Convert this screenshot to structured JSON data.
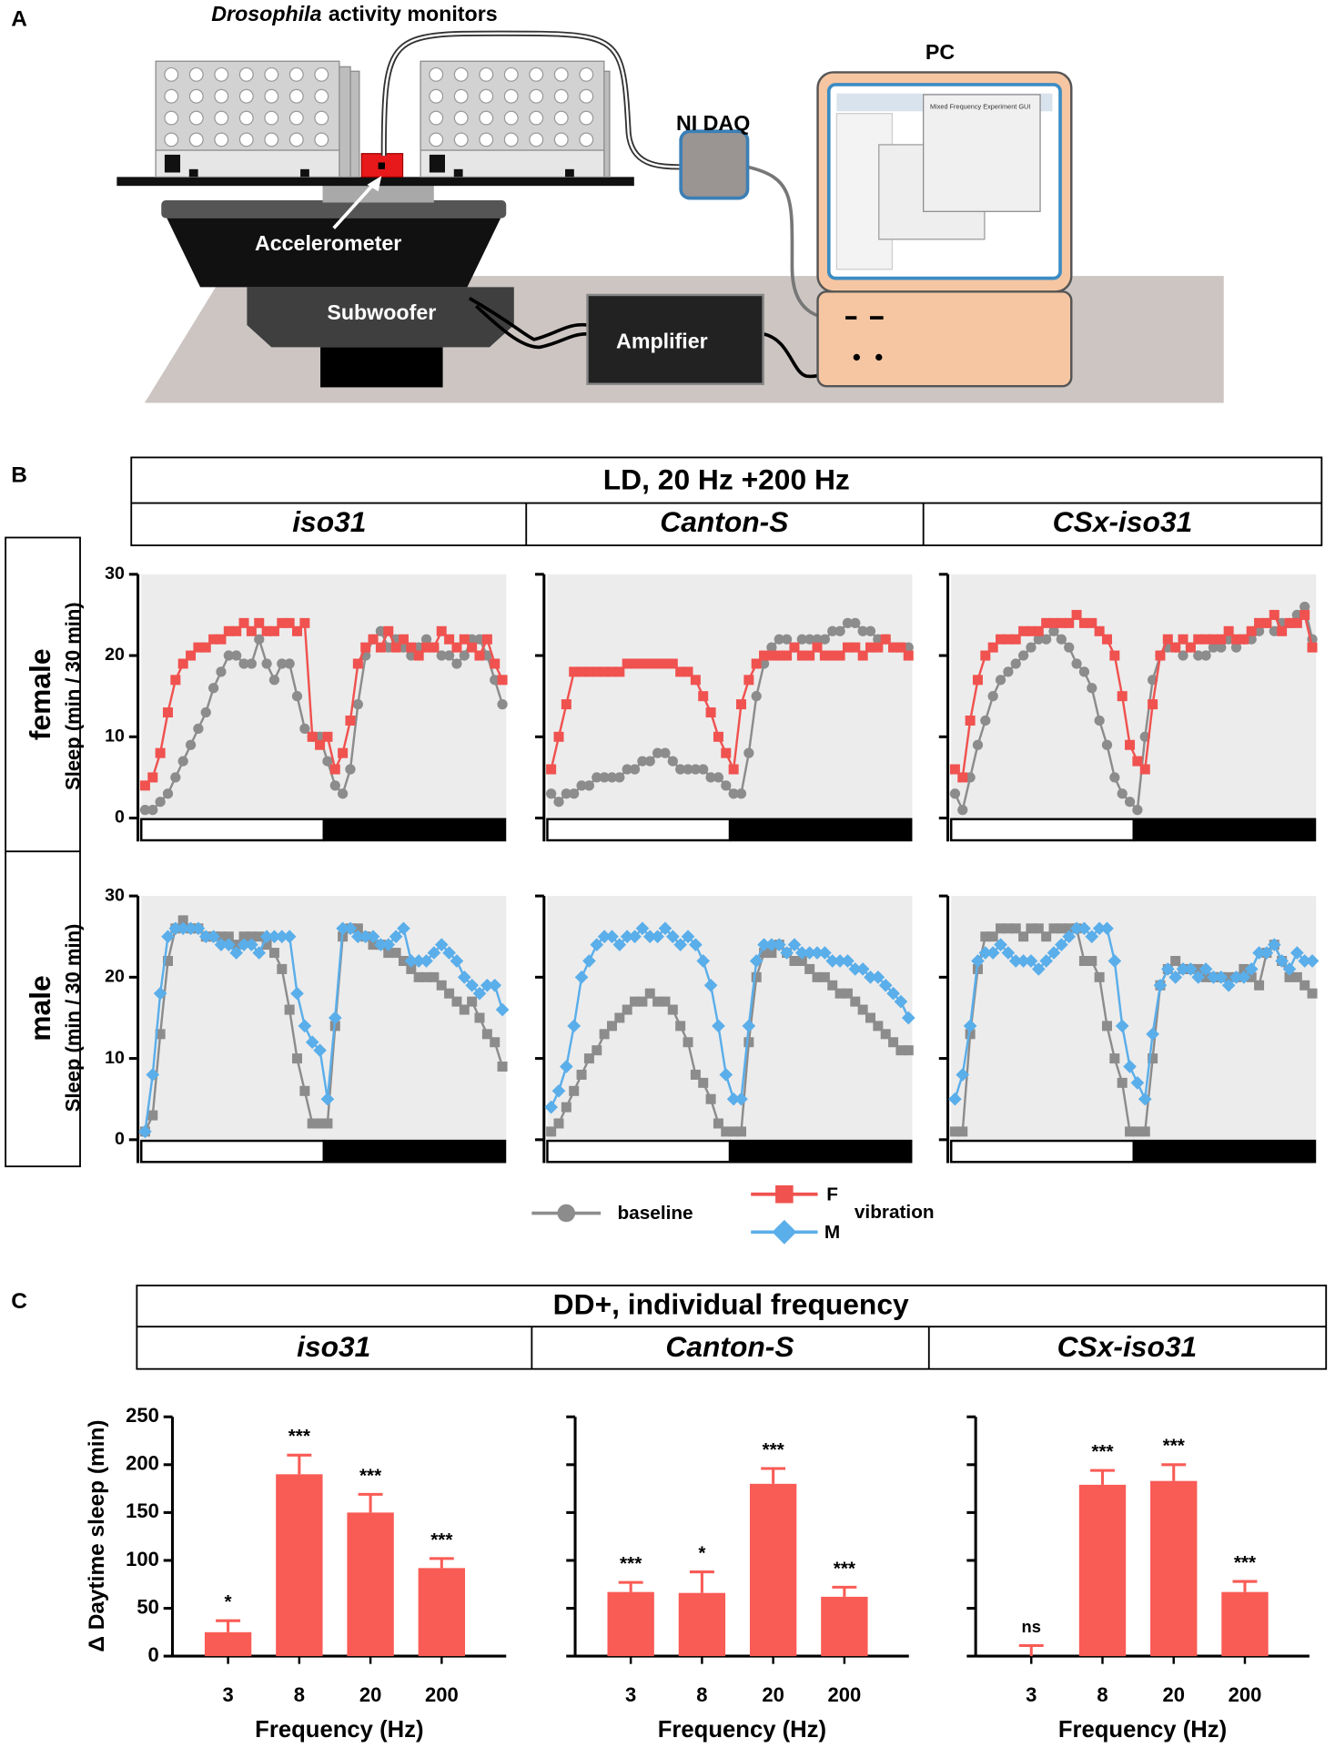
{
  "figure": {
    "panel_labels": [
      "A",
      "B",
      "C"
    ],
    "diagram": {
      "title_italic": "Drosophila",
      "title_rest": "activity monitors",
      "accelerometer": "Accelerometer",
      "subwoofer": "Subwoofer",
      "amplifier": "Amplifier",
      "daq": "NI DAQ",
      "pc": "PC",
      "gui_title": "Mixed Frequency Experiment GUI"
    },
    "panel_b": {
      "header": "LD, 20 Hz +200 Hz",
      "strains": [
        "iso31",
        "Canton-S",
        "CSx-iso31"
      ],
      "sexes": [
        "female",
        "male"
      ],
      "legend_group": "vibration"
    },
    "panel_c": {
      "header": "DD+, individual frequency",
      "strains": [
        "iso31",
        "Canton-S",
        "CSx-iso31"
      ]
    }
  },
  "chart_data": [
    {
      "type": "line",
      "ylim": [
        0,
        30
      ],
      "yticks": [
        0,
        10,
        20,
        30
      ],
      "tick_labels": true,
      "ylabel": "Sleep (min / 30 min)",
      "series": [
        {
          "name": "baseline",
          "color": "#8c8c8c",
          "marker": "circle",
          "values": [
            1,
            1,
            2,
            3,
            5,
            7,
            9,
            11,
            13,
            16,
            18,
            20,
            20,
            19,
            19,
            22,
            19,
            17,
            19,
            19,
            15,
            11,
            10,
            10,
            7,
            4,
            3,
            6,
            14,
            20,
            22,
            23,
            21,
            22,
            21,
            20,
            21,
            22,
            21,
            20,
            20,
            19,
            20,
            22,
            22,
            20,
            17,
            14
          ]
        },
        {
          "name": "F",
          "color": "#f0524f",
          "marker": "square",
          "values": [
            4,
            5,
            8,
            13,
            17,
            19,
            20,
            21,
            21,
            22,
            22,
            23,
            23,
            24,
            23,
            24,
            23,
            23,
            24,
            24,
            23,
            24,
            10,
            9,
            10,
            6,
            8,
            12,
            19,
            21,
            22,
            21,
            23,
            21,
            22,
            21,
            20,
            21,
            21,
            23,
            22,
            21,
            22,
            21,
            20,
            22,
            19,
            17
          ]
        }
      ]
    },
    {
      "type": "line",
      "ylim": [
        0,
        30
      ],
      "yticks": [
        0,
        10,
        20,
        30
      ],
      "tick_labels": false,
      "series": [
        {
          "name": "baseline",
          "color": "#8c8c8c",
          "marker": "circle",
          "values": [
            3,
            2,
            3,
            3,
            4,
            4,
            5,
            5,
            5,
            5,
            6,
            6,
            7,
            7,
            8,
            8,
            7,
            6,
            6,
            6,
            6,
            5,
            5,
            4,
            3,
            3,
            8,
            15,
            19,
            21,
            22,
            22,
            21,
            22,
            22,
            22,
            22,
            23,
            23,
            24,
            24,
            23,
            23,
            22,
            22,
            21,
            21,
            21
          ]
        },
        {
          "name": "F",
          "color": "#f0524f",
          "marker": "square",
          "values": [
            6,
            10,
            14,
            18,
            18,
            18,
            18,
            18,
            18,
            18,
            19,
            19,
            19,
            19,
            19,
            19,
            19,
            18,
            18,
            17,
            15,
            13,
            10,
            8,
            6,
            14,
            17,
            19,
            20,
            20,
            20,
            20,
            21,
            20,
            20,
            21,
            20,
            20,
            20,
            21,
            21,
            20,
            21,
            21,
            22,
            21,
            21,
            20
          ]
        }
      ]
    },
    {
      "type": "line",
      "ylim": [
        0,
        30
      ],
      "yticks": [
        0,
        10,
        20,
        30
      ],
      "tick_labels": false,
      "series": [
        {
          "name": "baseline",
          "color": "#8c8c8c",
          "marker": "circle",
          "values": [
            3,
            1,
            5,
            9,
            12,
            15,
            17,
            18,
            19,
            20,
            21,
            22,
            22,
            23,
            22,
            21,
            19,
            18,
            16,
            12,
            9,
            5,
            3,
            2,
            1,
            10,
            17,
            20,
            21,
            21,
            20,
            21,
            20,
            20,
            21,
            21,
            22,
            21,
            22,
            22,
            23,
            24,
            23,
            24,
            24,
            25,
            26,
            22
          ]
        },
        {
          "name": "F",
          "color": "#f0524f",
          "marker": "square",
          "values": [
            6,
            5,
            12,
            17,
            20,
            21,
            22,
            22,
            22,
            23,
            23,
            23,
            24,
            24,
            24,
            24,
            25,
            24,
            24,
            23,
            22,
            20,
            15,
            9,
            7,
            6,
            14,
            20,
            22,
            21,
            22,
            21,
            22,
            22,
            22,
            22,
            23,
            22,
            22,
            23,
            24,
            24,
            25,
            23,
            24,
            24,
            25,
            21
          ]
        }
      ]
    },
    {
      "type": "line",
      "ylim": [
        0,
        30
      ],
      "yticks": [
        0,
        10,
        20,
        30
      ],
      "tick_labels": true,
      "ylabel": "Sleep (min / 30 min)",
      "series": [
        {
          "name": "baseline",
          "color": "#8c8c8c",
          "marker": "square",
          "values": [
            1,
            3,
            13,
            22,
            26,
            27,
            26,
            26,
            25,
            25,
            25,
            25,
            24,
            25,
            25,
            25,
            24,
            23,
            21,
            16,
            10,
            6,
            2,
            2,
            2,
            14,
            25,
            26,
            26,
            25,
            24,
            24,
            23,
            23,
            22,
            21,
            20,
            20,
            20,
            19,
            18,
            17,
            16,
            17,
            15,
            13,
            12,
            9
          ]
        },
        {
          "name": "M",
          "color": "#5aaeea",
          "marker": "diamond",
          "values": [
            1,
            8,
            18,
            25,
            26,
            26,
            26,
            26,
            25,
            25,
            24,
            24,
            23,
            24,
            24,
            23,
            25,
            25,
            25,
            25,
            18,
            14,
            12,
            11,
            5,
            15,
            26,
            26,
            25,
            25,
            25,
            24,
            24,
            25,
            26,
            22,
            22,
            22,
            23,
            24,
            23,
            22,
            20,
            19,
            18,
            19,
            19,
            16
          ]
        }
      ]
    },
    {
      "type": "line",
      "ylim": [
        0,
        30
      ],
      "yticks": [
        0,
        10,
        20,
        30
      ],
      "tick_labels": false,
      "series": [
        {
          "name": "baseline",
          "color": "#8c8c8c",
          "marker": "square",
          "values": [
            1,
            2,
            4,
            6,
            8,
            10,
            11,
            13,
            14,
            15,
            16,
            17,
            17,
            18,
            17,
            17,
            16,
            14,
            12,
            8,
            7,
            5,
            2,
            1,
            1,
            1,
            12,
            20,
            23,
            23,
            24,
            23,
            22,
            22,
            21,
            20,
            20,
            19,
            18,
            18,
            17,
            16,
            15,
            14,
            13,
            12,
            11,
            11
          ]
        },
        {
          "name": "M",
          "color": "#5aaeea",
          "marker": "diamond",
          "values": [
            4,
            6,
            9,
            14,
            20,
            22,
            24,
            25,
            25,
            24,
            25,
            25,
            26,
            25,
            25,
            26,
            25,
            24,
            25,
            24,
            22,
            19,
            14,
            8,
            5,
            5,
            14,
            22,
            24,
            24,
            24,
            23,
            24,
            23,
            23,
            23,
            23,
            22,
            22,
            22,
            21,
            21,
            20,
            20,
            19,
            18,
            17,
            15
          ]
        }
      ]
    },
    {
      "type": "line",
      "ylim": [
        0,
        30
      ],
      "yticks": [
        0,
        10,
        20,
        30
      ],
      "tick_labels": false,
      "series": [
        {
          "name": "baseline",
          "color": "#8c8c8c",
          "marker": "square",
          "values": [
            1,
            1,
            13,
            21,
            25,
            25,
            26,
            26,
            26,
            25,
            26,
            26,
            25,
            26,
            26,
            26,
            26,
            22,
            22,
            20,
            14,
            10,
            7,
            1,
            1,
            1,
            10,
            19,
            21,
            22,
            21,
            21,
            21,
            20,
            20,
            20,
            20,
            20,
            21,
            20,
            19,
            23,
            24,
            22,
            20,
            20,
            19,
            18
          ]
        },
        {
          "name": "M",
          "color": "#5aaeea",
          "marker": "diamond",
          "values": [
            5,
            8,
            14,
            22,
            23,
            23,
            24,
            23,
            22,
            22,
            22,
            21,
            22,
            23,
            24,
            25,
            26,
            26,
            25,
            26,
            26,
            22,
            14,
            9,
            7,
            5,
            13,
            19,
            21,
            20,
            21,
            21,
            20,
            21,
            20,
            20,
            19,
            20,
            20,
            21,
            23,
            23,
            24,
            22,
            21,
            23,
            22,
            22
          ]
        }
      ]
    },
    {
      "type": "bar",
      "categories": [
        "3",
        "8",
        "20",
        "200"
      ],
      "values": [
        25,
        190,
        150,
        92
      ],
      "errors": [
        12,
        20,
        19,
        10
      ],
      "annotations": [
        "*",
        "***",
        "***",
        "***"
      ],
      "color": "#f95b55",
      "ylim": [
        0,
        250
      ],
      "yticks": [
        0,
        50,
        100,
        150,
        200,
        250
      ],
      "tick_labels": true,
      "ylabel": "Δ Daytime sleep (min)",
      "xlabel": "Frequency (Hz)"
    },
    {
      "type": "bar",
      "categories": [
        "3",
        "8",
        "20",
        "200"
      ],
      "values": [
        67,
        66,
        180,
        62
      ],
      "errors": [
        10,
        22,
        16,
        10
      ],
      "annotations": [
        "***",
        "*",
        "***",
        "***"
      ],
      "color": "#f95b55",
      "ylim": [
        0,
        250
      ],
      "yticks": [
        0,
        50,
        100,
        150,
        200,
        250
      ],
      "tick_labels": false,
      "xlabel": "Frequency (Hz)"
    },
    {
      "type": "bar",
      "categories": [
        "3",
        "8",
        "20",
        "200"
      ],
      "values": [
        0,
        179,
        183,
        67
      ],
      "errors": [
        11,
        15,
        17,
        11
      ],
      "annotations": [
        "ns",
        "***",
        "***",
        "***"
      ],
      "color": "#f95b55",
      "ylim": [
        0,
        250
      ],
      "yticks": [
        0,
        50,
        100,
        150,
        200,
        250
      ],
      "tick_labels": false,
      "xlabel": "Frequency (Hz)"
    }
  ]
}
